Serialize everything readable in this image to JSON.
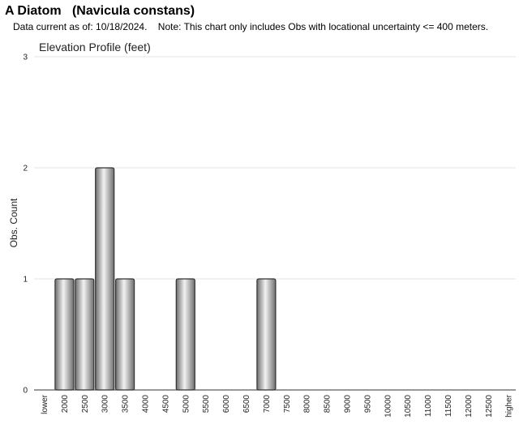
{
  "header": {
    "title": "A Diatom   (Navicula constans)",
    "subtitle": "Data current as of: 10/18/2024.    Note: This chart only includes Obs with locational uncertainty <= 400 meters."
  },
  "chart_data": {
    "type": "bar",
    "title": "Elevation Profile (feet)",
    "xlabel": "",
    "ylabel": "Obs. Count",
    "ylim": [
      0,
      3
    ],
    "yticks": [
      "0",
      "1",
      "2",
      "3"
    ],
    "grid": true,
    "categories": [
      "lower",
      "2000",
      "2500",
      "3000",
      "3500",
      "4000",
      "4500",
      "5000",
      "5500",
      "6000",
      "6500",
      "7000",
      "7500",
      "8000",
      "8500",
      "9000",
      "9500",
      "10000",
      "10500",
      "11000",
      "11500",
      "12000",
      "12500",
      "higher"
    ],
    "values": [
      0,
      1,
      1,
      2,
      1,
      0,
      0,
      1,
      0,
      0,
      0,
      1,
      0,
      0,
      0,
      0,
      0,
      0,
      0,
      0,
      0,
      0,
      0,
      0
    ],
    "colors": {
      "bar_light": "#f2f2f2",
      "bar_dark": "#6e6e6e",
      "bar_stroke": "#333333",
      "grid": "#e6e6e6"
    }
  }
}
